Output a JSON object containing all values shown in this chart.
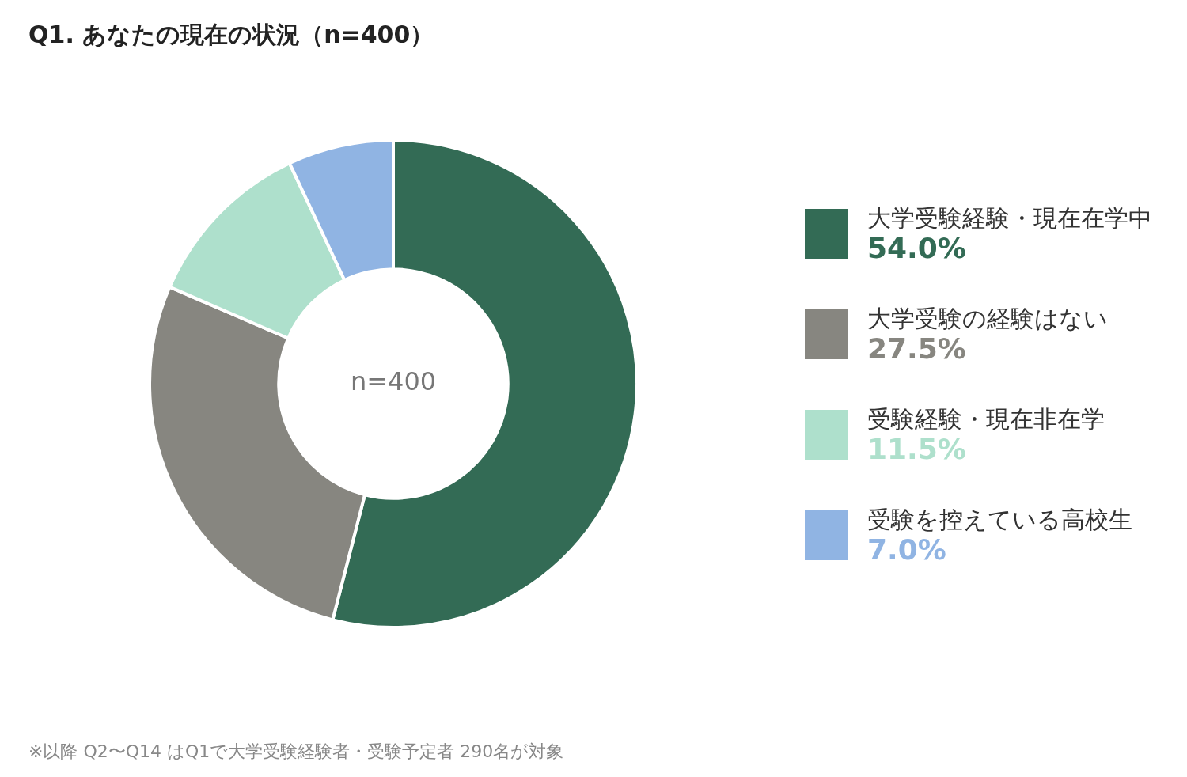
{
  "chart_data": {
    "type": "donut",
    "title": "Q1. あなたの現在の状況（n=400）",
    "categories": [
      "大学受験経験・現在在学中",
      "大学受験の経験はない",
      "受験経験・現在非在学",
      "受験を控えている高校生"
    ],
    "values": [
      54.0,
      27.5,
      11.5,
      7.0
    ],
    "value_labels": [
      "54.0%",
      "27.5%",
      "11.5%",
      "7.0%"
    ],
    "colors": [
      "#336b55",
      "#878680",
      "#aee0cc",
      "#90b4e3"
    ],
    "legend": "right",
    "annotations": [
      "n=400",
      "※以降 Q2〜Q14 はQ1で大学受験経験者・受験予定者 290名が対象"
    ]
  }
}
